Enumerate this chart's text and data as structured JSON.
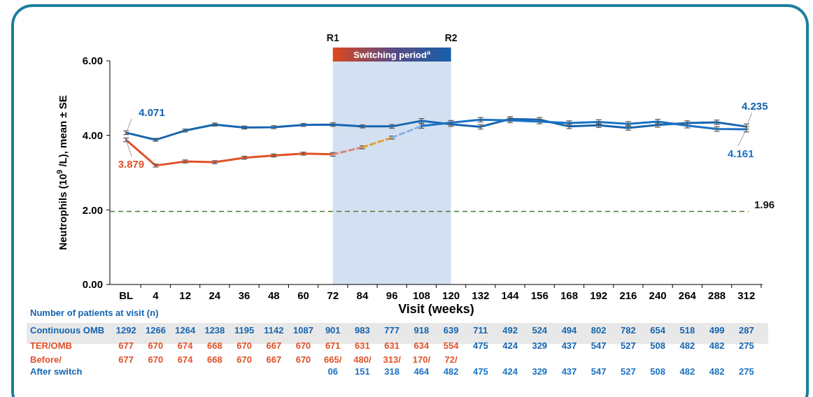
{
  "chart_data": {
    "type": "line",
    "xlabel": "Visit (weeks)",
    "ylabel": "Neutrophils (10$^{9}$/L), mean ± SE",
    "categories": [
      "BL",
      "4",
      "12",
      "24",
      "36",
      "48",
      "60",
      "72",
      "84",
      "96",
      "108",
      "120",
      "132",
      "144",
      "156",
      "168",
      "192",
      "216",
      "240",
      "264",
      "288",
      "312"
    ],
    "ylim": [
      0,
      6
    ],
    "yticks": [
      {
        "value": 0,
        "label": "0.00"
      },
      {
        "value": 2,
        "label": "2.00"
      },
      {
        "value": 4,
        "label": "4.00"
      },
      {
        "value": 6,
        "label": "6.00"
      }
    ],
    "grid": false,
    "marker": "none",
    "line_style": "solid",
    "series": [
      {
        "color": "#1565b0",
        "values": [
          4.071,
          3.88,
          4.13,
          4.29,
          4.21,
          4.22,
          4.28,
          4.29,
          4.24,
          4.24,
          4.39,
          4.3,
          4.23,
          4.44,
          4.42,
          4.24,
          4.27,
          4.2,
          4.28,
          4.33,
          4.35,
          4.235
        ],
        "errors": [
          0.05,
          0.04,
          0.04,
          0.04,
          0.04,
          0.04,
          0.04,
          0.05,
          0.04,
          0.05,
          0.06,
          0.06,
          0.06,
          0.06,
          0.06,
          0.06,
          0.06,
          0.06,
          0.06,
          0.06,
          0.06,
          0.07
        ],
        "value_labels": [
          "4.071",
          null,
          null,
          null,
          null,
          null,
          null,
          null,
          null,
          null,
          null,
          null,
          null,
          null,
          null,
          null,
          null,
          null,
          null,
          null,
          null,
          "4.235"
        ]
      },
      {
        "color": "#e0522a",
        "values": [
          3.879,
          3.19,
          3.3,
          3.28,
          3.4,
          3.46,
          3.51,
          3.49,
          null,
          null,
          null,
          null,
          null,
          null,
          null,
          null,
          null,
          null,
          null,
          null,
          null,
          null
        ],
        "errors": [
          0.05,
          0.04,
          0.04,
          0.04,
          0.04,
          0.04,
          0.04,
          0.05,
          null,
          null,
          null,
          null,
          null,
          null,
          null,
          null,
          null,
          null,
          null,
          null,
          null,
          null
        ],
        "value_labels": [
          "3.879",
          null,
          null,
          null,
          null,
          null,
          null,
          null,
          null,
          null,
          null,
          null,
          null,
          null,
          null,
          null,
          null,
          null,
          null,
          null,
          null,
          null
        ]
      },
      {
        "color": "#d08a86",
        "line_style": "dashed",
        "values": [
          null,
          null,
          null,
          null,
          null,
          null,
          null,
          3.49,
          3.68,
          null,
          null,
          null,
          null,
          null,
          null,
          null,
          null,
          null,
          null,
          null,
          null,
          null
        ],
        "errors": [
          null,
          null,
          null,
          null,
          null,
          null,
          null,
          null,
          0.04,
          null,
          null,
          null,
          null,
          null,
          null,
          null,
          null,
          null,
          null,
          null,
          null,
          null
        ]
      },
      {
        "color": "#e0a030",
        "line_style": "dashed",
        "values": [
          null,
          null,
          null,
          null,
          null,
          null,
          null,
          null,
          3.68,
          3.94,
          null,
          null,
          null,
          null,
          null,
          null,
          null,
          null,
          null,
          null,
          null,
          null
        ],
        "errors": [
          null,
          null,
          null,
          null,
          null,
          null,
          null,
          null,
          null,
          0.04,
          null,
          null,
          null,
          null,
          null,
          null,
          null,
          null,
          null,
          null,
          null,
          null
        ]
      },
      {
        "color": "#86b4e4",
        "line_style": "dashed",
        "values": [
          null,
          null,
          null,
          null,
          null,
          null,
          null,
          null,
          null,
          3.94,
          4.25,
          null,
          null,
          null,
          null,
          null,
          null,
          null,
          null,
          null,
          null,
          null
        ]
      },
      {
        "color": "#1a72c4",
        "values": [
          null,
          null,
          null,
          null,
          null,
          null,
          null,
          null,
          null,
          null,
          4.25,
          4.34,
          4.42,
          4.4,
          4.37,
          4.33,
          4.36,
          4.31,
          4.37,
          4.26,
          4.17,
          4.161
        ],
        "errors": [
          null,
          null,
          null,
          null,
          null,
          null,
          null,
          null,
          null,
          null,
          0.06,
          0.06,
          0.06,
          0.06,
          0.06,
          0.06,
          0.06,
          0.06,
          0.06,
          0.06,
          0.06,
          0.07
        ],
        "value_labels": [
          null,
          null,
          null,
          null,
          null,
          null,
          null,
          null,
          null,
          null,
          null,
          null,
          null,
          null,
          null,
          null,
          null,
          null,
          null,
          null,
          null,
          "4.161"
        ]
      }
    ],
    "ref_lines": [
      {
        "axis": "y",
        "value": 1.96,
        "label": "1.96",
        "color": "#4a7a2a",
        "line_style": "dashed"
      }
    ],
    "bands": [
      {
        "axis": "x",
        "from": "72",
        "to": "120",
        "label": "Switching period$^{a}$",
        "color": "#d3e0f1"
      }
    ],
    "annotations": [
      "R1",
      "R2",
      "Number of patients at visit (n)",
      "Continuous OMB",
      "1292 1266 1264 1238 1195 1142 1087 901 983 777 918 639 711 492 524 494 802 782 654 518 499 287",
      "TER/OMB",
      "677 670 674 668 670 667 670 671 631 631 634 554 475 424 329 437 547 527 508 482 482 275",
      "Before/",
      "677 670 674 668 670 667 670 665/ 480/ 313/ 170/ 72/",
      "After switch",
      "06 151 318 464 482 475 424 329 437 547 527 508 482 482 275"
    ]
  }
}
